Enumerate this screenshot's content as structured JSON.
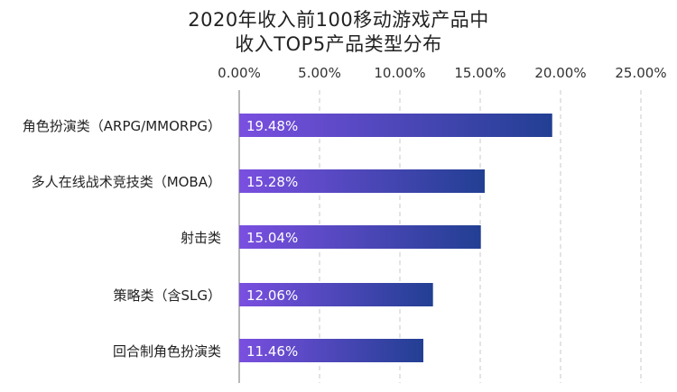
{
  "chart_data": {
    "type": "bar",
    "orientation": "horizontal",
    "title_lines": [
      "2020年收入前100移动游戏产品中",
      "收入TOP5产品类型分布"
    ],
    "categories": [
      "角色扮演类（ARPG/MMORPG）",
      "多人在线战术竞技类（MOBA）",
      "射击类",
      "策略类（含SLG）",
      "回合制角色扮演类"
    ],
    "values": [
      19.48,
      15.28,
      15.04,
      12.06,
      11.46
    ],
    "value_labels": [
      "19.48%",
      "15.28%",
      "15.04%",
      "12.06%",
      "11.46%"
    ],
    "xlim": [
      0,
      25
    ],
    "xticks": [
      0,
      5,
      10,
      15,
      20,
      25
    ],
    "xtick_labels": [
      "0.00%",
      "5.00%",
      "10.00%",
      "15.00%",
      "20.00%",
      "25.00%"
    ],
    "xaxis_position": "top",
    "grid": true,
    "colors": {
      "bar_left": "#7a4fe0",
      "bar_right": "#223f93",
      "label_text": "#ffffff",
      "grid": "#c8c8c8",
      "tick_text": "#333333"
    }
  }
}
